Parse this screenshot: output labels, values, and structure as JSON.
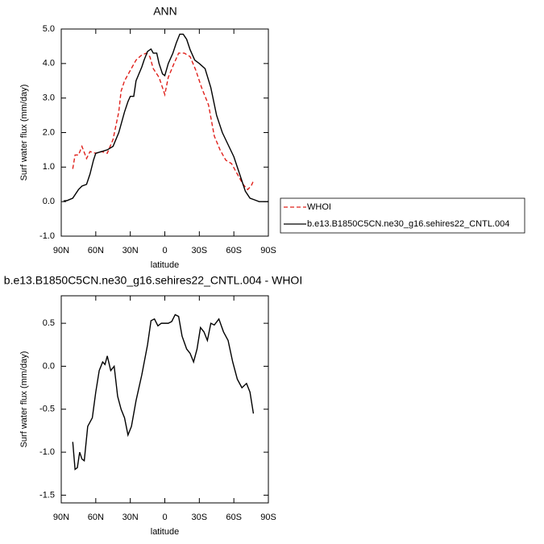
{
  "chart_data": [
    {
      "type": "line",
      "title": "ANN",
      "ylabel": "Surf water flux (mm/day)",
      "xlabel": "latitude",
      "xlim": [
        90,
        -90
      ],
      "xticks": [
        {
          "value": 90,
          "label": "90N"
        },
        {
          "value": 60,
          "label": "60N"
        },
        {
          "value": 30,
          "label": "30N"
        },
        0,
        {
          "value": -30,
          "label": "30S"
        },
        {
          "value": -60,
          "label": "60S"
        },
        {
          "value": -90,
          "label": "90S"
        }
      ],
      "ylim": [
        -1,
        5
      ],
      "yticks": [
        {
          "value": -1,
          "label": "-1.0"
        },
        {
          "value": 0,
          "label": "0.0"
        },
        {
          "value": 1,
          "label": "1.0"
        },
        {
          "value": 2,
          "label": "2.0"
        },
        {
          "value": 3,
          "label": "3.0"
        },
        {
          "value": 4,
          "label": "4.0"
        },
        {
          "value": 5,
          "label": "5.0"
        }
      ],
      "legend": "right",
      "series": [
        {
          "name": "WHOI",
          "color": "#e0201b",
          "dashed": true,
          "x": [
            80,
            78,
            75,
            72,
            68,
            65,
            60,
            55,
            50,
            45,
            40,
            38,
            35,
            30,
            25,
            20,
            16,
            13,
            10,
            5,
            2,
            0,
            -3,
            -8,
            -12,
            -17,
            -22,
            -27,
            -32,
            -38,
            -43,
            -48,
            -53,
            -58,
            -63,
            -68,
            -72,
            -75,
            -77
          ],
          "values": [
            0.95,
            1.35,
            1.35,
            1.6,
            1.25,
            1.45,
            1.4,
            1.45,
            1.4,
            1.8,
            2.6,
            3.2,
            3.5,
            3.8,
            4.1,
            4.25,
            4.3,
            4.2,
            3.85,
            3.6,
            3.3,
            3.1,
            3.6,
            4.0,
            4.3,
            4.3,
            4.2,
            3.8,
            3.3,
            2.8,
            1.9,
            1.5,
            1.2,
            1.1,
            0.8,
            0.5,
            0.35,
            0.45,
            0.6
          ]
        },
        {
          "name": "b.e13.B1850C5CN.ne30_g16.sehires22_CNTL.004",
          "color": "#000000",
          "dashed": false,
          "x": [
            88,
            85,
            80,
            75,
            72,
            68,
            65,
            62,
            60,
            55,
            50,
            45,
            40,
            35,
            32,
            30,
            27,
            25,
            20,
            18,
            15,
            12,
            10,
            7,
            5,
            2,
            0,
            -3,
            -7,
            -10,
            -13,
            -16,
            -19,
            -22,
            -26,
            -30,
            -35,
            -40,
            -45,
            -50,
            -55,
            -60,
            -65,
            -70,
            -74,
            -78,
            -82,
            -90
          ],
          "values": [
            0.02,
            0.03,
            0.1,
            0.35,
            0.45,
            0.5,
            0.8,
            1.2,
            1.4,
            1.45,
            1.5,
            1.6,
            2.0,
            2.6,
            2.9,
            3.05,
            3.05,
            3.5,
            3.9,
            4.1,
            4.35,
            4.42,
            4.3,
            4.3,
            4.0,
            3.7,
            3.65,
            4.0,
            4.3,
            4.6,
            4.85,
            4.85,
            4.7,
            4.4,
            4.1,
            4.0,
            3.85,
            3.3,
            2.5,
            2.0,
            1.65,
            1.3,
            0.8,
            0.3,
            0.1,
            0.05,
            0.0,
            0.0
          ]
        }
      ]
    },
    {
      "type": "line",
      "title": "b.e13.B1850C5CN.ne30_g16.sehires22_CNTL.004 - WHOI",
      "ylabel": "Surf water flux (mm/day)",
      "xlabel": "latitude",
      "xlim": [
        90,
        -90
      ],
      "xticks": [
        {
          "value": 90,
          "label": "90N"
        },
        {
          "value": 60,
          "label": "60N"
        },
        {
          "value": 30,
          "label": "30N"
        },
        0,
        {
          "value": -30,
          "label": "30S"
        },
        {
          "value": -60,
          "label": "60S"
        },
        {
          "value": -90,
          "label": "90S"
        }
      ],
      "ylim": [
        -1.59,
        0.82
      ],
      "yticks": [
        -1.5,
        {
          "value": -1,
          "label": "-1.0"
        },
        -0.5,
        {
          "value": 0,
          "label": "0.0"
        },
        0.5
      ],
      "series": [
        {
          "color": "#000000",
          "dashed": false,
          "x": [
            80,
            78,
            76,
            74,
            72,
            70,
            67,
            63,
            60,
            57,
            54,
            52,
            50,
            47,
            44,
            41,
            38,
            35,
            32,
            29,
            25,
            20,
            15,
            12,
            9,
            6,
            3,
            0,
            -3,
            -6,
            -9,
            -12,
            -15,
            -19,
            -22,
            -25,
            -28,
            -31,
            -34,
            -37,
            -40,
            -43,
            -47,
            -51,
            -55,
            -59,
            -63,
            -67,
            -71,
            -74,
            -77
          ],
          "values": [
            -0.88,
            -1.2,
            -1.18,
            -1.0,
            -1.08,
            -1.1,
            -0.7,
            -0.6,
            -0.3,
            -0.05,
            0.05,
            0.02,
            0.12,
            -0.05,
            0.0,
            -0.35,
            -0.5,
            -0.6,
            -0.8,
            -0.7,
            -0.4,
            -0.1,
            0.25,
            0.53,
            0.55,
            0.47,
            0.5,
            0.5,
            0.5,
            0.52,
            0.6,
            0.58,
            0.35,
            0.2,
            0.15,
            0.05,
            0.2,
            0.45,
            0.4,
            0.3,
            0.5,
            0.48,
            0.55,
            0.4,
            0.3,
            0.05,
            -0.15,
            -0.25,
            -0.2,
            -0.3,
            -0.55
          ]
        }
      ]
    }
  ]
}
